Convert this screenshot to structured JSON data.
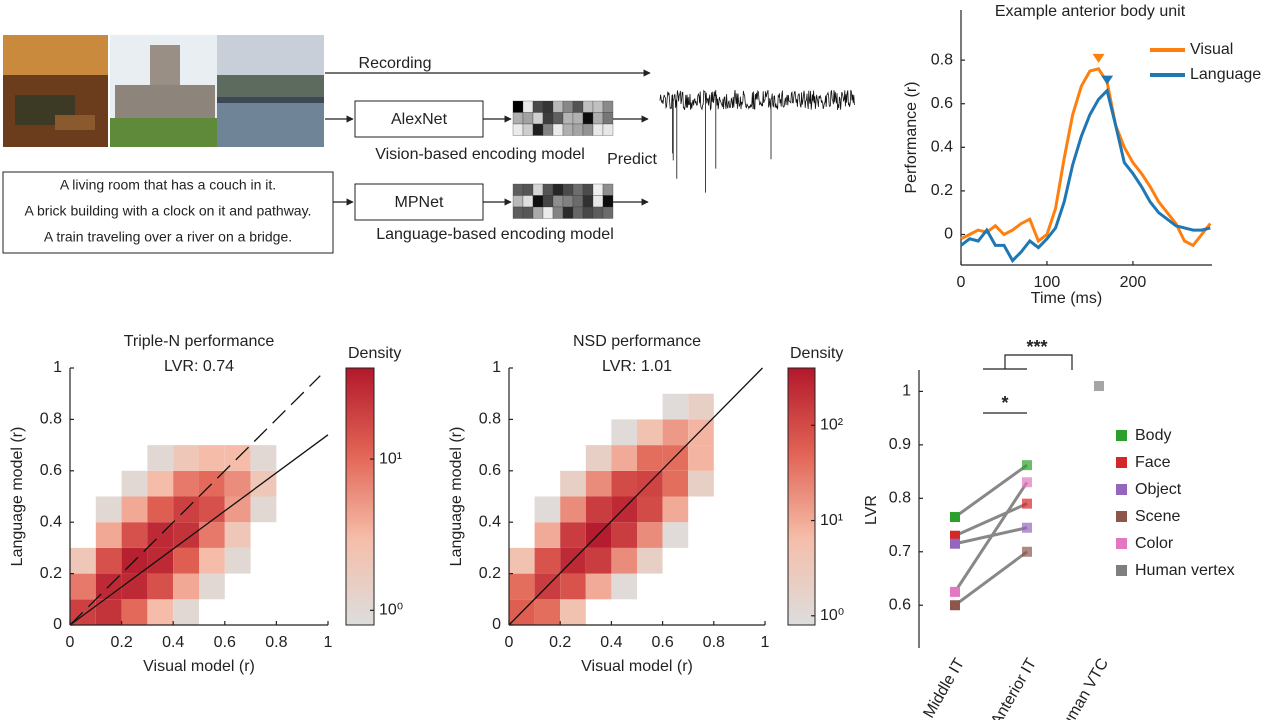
{
  "diagram": {
    "recording": "Recording",
    "vision_model": "AlexNet",
    "vision_caption": "Vision-based encoding model",
    "predict": "Predict",
    "language_model": "MPNet",
    "language_caption": "Language-based encoding model",
    "captions": [
      "A living room that has a couch in it.",
      "A brick building with a clock on it and pathway.",
      "A train traveling over a river on a bridge."
    ]
  },
  "chart_data": [
    {
      "type": "line",
      "title": "Example anterior body unit",
      "xlabel": "Time (ms)",
      "ylabel": "Performance (r)",
      "x": [
        0,
        10,
        20,
        30,
        40,
        50,
        60,
        70,
        80,
        90,
        100,
        110,
        120,
        130,
        140,
        150,
        160,
        170,
        180,
        190,
        200,
        210,
        220,
        230,
        240,
        250,
        260,
        270,
        280,
        290
      ],
      "series": [
        {
          "name": "Visual",
          "color": "#ff7f0e",
          "values": [
            -0.02,
            0.0,
            0.02,
            0.01,
            0.04,
            0.0,
            0.02,
            0.05,
            0.07,
            -0.03,
            0.0,
            0.12,
            0.35,
            0.55,
            0.68,
            0.75,
            0.76,
            0.7,
            0.5,
            0.4,
            0.33,
            0.28,
            0.22,
            0.15,
            0.1,
            0.05,
            -0.03,
            -0.05,
            0.0,
            0.05
          ],
          "marker": {
            "x": 160,
            "y": 0.76
          }
        },
        {
          "name": "Language",
          "color": "#1f77b4",
          "values": [
            -0.05,
            -0.02,
            -0.03,
            0.02,
            -0.05,
            -0.05,
            -0.12,
            -0.08,
            -0.03,
            -0.06,
            -0.02,
            0.03,
            0.15,
            0.32,
            0.45,
            0.55,
            0.62,
            0.66,
            0.5,
            0.33,
            0.28,
            0.22,
            0.15,
            0.1,
            0.07,
            0.04,
            0.03,
            0.02,
            0.02,
            0.03
          ],
          "marker": {
            "x": 170,
            "y": 0.66
          }
        }
      ],
      "xlim": [
        0,
        292
      ],
      "xticks": [
        0,
        100,
        200
      ],
      "ylim": [
        -0.14,
        1.03
      ],
      "yticks": [
        0,
        0.2,
        0.4,
        0.6,
        0.8
      ],
      "legend": "upper right"
    },
    {
      "type": "density",
      "title": "Triple-N performance",
      "subtitle": "LVR: 0.74",
      "xlabel": "Visual model (r)",
      "ylabel": "Language model (r)",
      "xbins": [
        0,
        0.1,
        0.2,
        0.3,
        0.4,
        0.5,
        0.6,
        0.7,
        0.8,
        0.9,
        1
      ],
      "ybins": [
        0,
        0.1,
        0.2,
        0.3,
        0.4,
        0.5,
        0.6,
        0.7,
        0.8,
        0.9,
        1
      ],
      "z": [
        [
          20,
          25,
          10,
          3,
          1,
          null,
          null,
          null,
          null,
          null
        ],
        [
          8,
          30,
          30,
          15,
          4,
          1,
          null,
          null,
          null,
          null
        ],
        [
          2,
          15,
          35,
          30,
          12,
          3,
          1,
          null,
          null,
          null
        ],
        [
          null,
          4,
          15,
          30,
          25,
          8,
          2,
          null,
          null,
          null
        ],
        [
          null,
          1,
          4,
          12,
          20,
          15,
          5,
          1,
          null,
          null
        ],
        [
          null,
          null,
          1,
          3,
          8,
          10,
          6,
          2,
          null,
          null
        ],
        [
          null,
          null,
          null,
          1,
          2,
          3,
          3,
          1,
          null,
          null
        ],
        [
          null,
          null,
          null,
          null,
          null,
          null,
          null,
          null,
          null,
          null
        ],
        [
          null,
          null,
          null,
          null,
          null,
          null,
          null,
          null,
          null,
          null
        ],
        [
          null,
          null,
          null,
          null,
          null,
          null,
          null,
          null,
          null,
          null
        ]
      ],
      "lines": [
        {
          "slope": 0.74,
          "style": "solid"
        },
        {
          "slope": 1,
          "style": "dashed"
        }
      ],
      "xlim": [
        0,
        1
      ],
      "xticks": [
        0,
        0.2,
        0.4,
        0.6,
        0.8,
        1
      ],
      "ylim": [
        0,
        1
      ],
      "yticks": [
        0,
        0.2,
        0.4,
        0.6,
        0.8,
        1
      ],
      "colorbar_label": "Density",
      "clim": [
        0.8,
        40
      ],
      "cticks": [
        {
          "value": 1,
          "label": "10⁰"
        },
        {
          "value": 10,
          "label": "10¹"
        }
      ],
      "log_color": true
    },
    {
      "type": "density",
      "title": "NSD performance",
      "subtitle": "LVR: 1.01",
      "xlabel": "Visual model (r)",
      "ylabel": "Language model (r)",
      "xbins": [
        0,
        0.1,
        0.2,
        0.3,
        0.4,
        0.5,
        0.6,
        0.7,
        0.8,
        0.9,
        1
      ],
      "ybins": [
        0,
        0.1,
        0.2,
        0.3,
        0.4,
        0.5,
        0.6,
        0.7,
        0.8,
        0.9,
        1
      ],
      "z": [
        [
          60,
          40,
          5,
          null,
          null,
          null,
          null,
          null,
          null,
          null
        ],
        [
          40,
          150,
          80,
          10,
          1,
          null,
          null,
          null,
          null,
          null
        ],
        [
          5,
          80,
          250,
          150,
          20,
          2,
          null,
          null,
          null,
          null
        ],
        [
          null,
          10,
          150,
          350,
          150,
          20,
          1,
          null,
          null,
          null
        ],
        [
          null,
          1,
          20,
          150,
          250,
          100,
          10,
          null,
          null,
          null
        ],
        [
          null,
          null,
          2,
          20,
          100,
          120,
          40,
          2,
          null,
          null
        ],
        [
          null,
          null,
          null,
          2,
          10,
          40,
          40,
          8,
          null,
          null
        ],
        [
          null,
          null,
          null,
          null,
          1,
          5,
          15,
          8,
          null,
          null
        ],
        [
          null,
          null,
          null,
          null,
          null,
          null,
          1,
          2,
          null,
          null
        ],
        [
          null,
          null,
          null,
          null,
          null,
          null,
          null,
          null,
          null,
          null
        ]
      ],
      "lines": [
        {
          "slope": 1.01,
          "style": "solid"
        }
      ],
      "xlim": [
        0,
        1
      ],
      "xticks": [
        0,
        0.2,
        0.4,
        0.6,
        0.8,
        1
      ],
      "ylim": [
        0,
        1
      ],
      "yticks": [
        0,
        0.2,
        0.4,
        0.6,
        0.8,
        1
      ],
      "colorbar_label": "Density",
      "clim": [
        0.8,
        400
      ],
      "cticks": [
        {
          "value": 1,
          "label": "10⁰"
        },
        {
          "value": 10,
          "label": "10¹"
        },
        {
          "value": 100,
          "label": "10²"
        }
      ],
      "log_color": true
    },
    {
      "type": "dot",
      "ylabel": "LVR",
      "categories": [
        "Middle IT",
        "Anterior IT",
        "Human VTC"
      ],
      "series": [
        {
          "name": "Body",
          "color": "#2ca02c",
          "values": [
            0.765,
            0.862,
            null
          ]
        },
        {
          "name": "Face",
          "color": "#d62728",
          "values": [
            0.73,
            0.79,
            null
          ]
        },
        {
          "name": "Object",
          "color": "#9467bd",
          "values": [
            0.715,
            0.745,
            null
          ]
        },
        {
          "name": "Scene",
          "color": "#8c564b",
          "values": [
            0.6,
            0.7,
            null
          ]
        },
        {
          "name": "Color",
          "color": "#e377c2",
          "values": [
            0.625,
            0.83,
            null
          ]
        },
        {
          "name": "Human vertex",
          "color": "#7f7f7f",
          "values": [
            null,
            null,
            1.01
          ]
        }
      ],
      "ylim": [
        0.52,
        1.04
      ],
      "yticks": [
        0.6,
        0.7,
        0.8,
        0.9,
        1
      ],
      "annotations": [
        "***",
        "*"
      ]
    }
  ]
}
